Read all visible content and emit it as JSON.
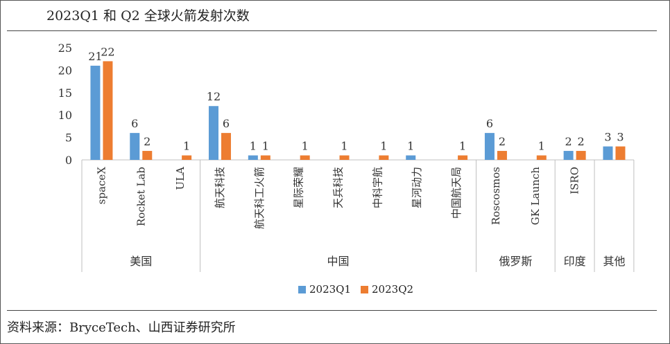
{
  "title": "2023Q1 和 Q2 全球火箭发射次数",
  "source": "资料来源：BryceTech、山西证券研究所",
  "colors": {
    "q1": "#5b9bd5",
    "q2": "#ed7d31",
    "axis": "#bfbfbf",
    "text": "#333333"
  },
  "chart_data": {
    "type": "bar",
    "categories": [
      "spaceX",
      "Rocket Lab",
      "ULA",
      "航天科技",
      "航天科工火箭",
      "星际荣耀",
      "天兵科技",
      "中科宇航",
      "星河动力",
      "中国航天局",
      "Roscosmos",
      "GK Launch",
      "ISRO",
      ""
    ],
    "groups": [
      {
        "label": "美国",
        "count": 3
      },
      {
        "label": "中国",
        "count": 7
      },
      {
        "label": "俄罗斯",
        "count": 2
      },
      {
        "label": "印度",
        "count": 1
      },
      {
        "label": "其他",
        "count": 1
      }
    ],
    "series": [
      {
        "name": "2023Q1",
        "values": [
          21,
          6,
          null,
          12,
          1,
          null,
          null,
          null,
          1,
          null,
          6,
          null,
          2,
          3
        ]
      },
      {
        "name": "2023Q2",
        "values": [
          22,
          2,
          1,
          6,
          1,
          1,
          1,
          1,
          null,
          1,
          2,
          1,
          2,
          3
        ]
      }
    ],
    "yticks": [
      0,
      5,
      10,
      15,
      20,
      25
    ],
    "ylim": [
      0,
      25
    ],
    "legend_position": "bottom"
  }
}
